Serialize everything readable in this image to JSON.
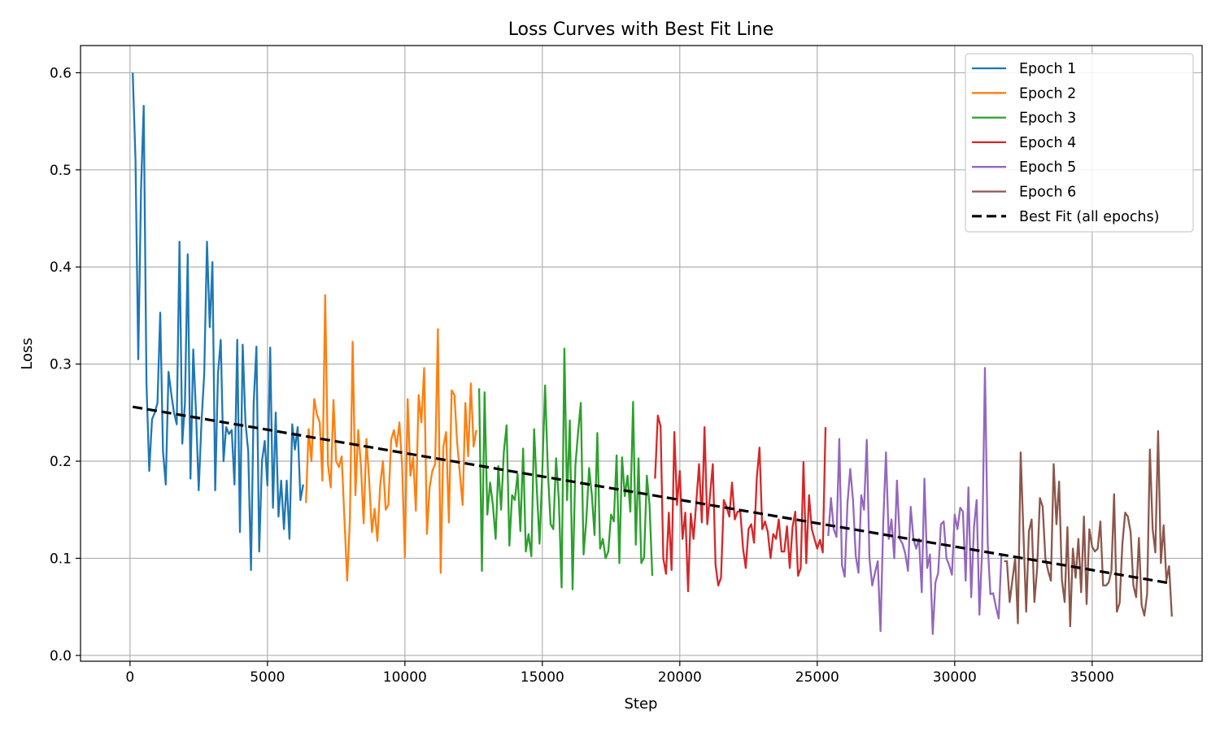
{
  "chart_data": {
    "type": "line",
    "title": "Loss Curves with Best Fit Line",
    "xlabel": "Step",
    "ylabel": "Loss",
    "xlim": [
      -1800,
      39000
    ],
    "ylim": [
      -0.006,
      0.628
    ],
    "xticks": [
      0,
      5000,
      10000,
      15000,
      20000,
      25000,
      30000,
      35000
    ],
    "yticks": [
      0.0,
      0.1,
      0.2,
      0.3,
      0.4,
      0.5,
      0.6
    ],
    "xtick_labels": [
      "0",
      "5000",
      "10000",
      "15000",
      "20000",
      "25000",
      "30000",
      "35000"
    ],
    "ytick_labels": [
      "0.0",
      "0.1",
      "0.2",
      "0.3",
      "0.4",
      "0.5",
      "0.6"
    ],
    "grid": true,
    "legend_position": "top-right",
    "series": [
      {
        "name": "Epoch 1",
        "color": "#1f77b4",
        "x": [
          100,
          200,
          300,
          400,
          500,
          600,
          700,
          800,
          900,
          1000,
          1100,
          1200,
          1300,
          1400,
          1500,
          1600,
          1700,
          1800,
          1900,
          2000,
          2100,
          2200,
          2300,
          2400,
          2500,
          2600,
          2700,
          2800,
          2900,
          3000,
          3100,
          3200,
          3300,
          3400,
          3500,
          3600,
          3700,
          3800,
          3900,
          4000,
          4100,
          4200,
          4300,
          4400,
          4500,
          4600,
          4700,
          4800,
          4900,
          5000,
          5100,
          5200,
          5300,
          5400,
          5500,
          5600,
          5700,
          5800,
          5900,
          6000,
          6100,
          6200,
          6300
        ],
        "y": [
          0.6,
          0.51,
          0.305,
          0.48,
          0.566,
          0.28,
          0.19,
          0.243,
          0.25,
          0.26,
          0.353,
          0.21,
          0.176,
          0.292,
          0.27,
          0.25,
          0.238,
          0.426,
          0.218,
          0.26,
          0.413,
          0.182,
          0.315,
          0.25,
          0.17,
          0.24,
          0.29,
          0.426,
          0.338,
          0.405,
          0.17,
          0.29,
          0.325,
          0.2,
          0.235,
          0.228,
          0.232,
          0.176,
          0.325,
          0.127,
          0.32,
          0.24,
          0.21,
          0.088,
          0.26,
          0.318,
          0.107,
          0.2,
          0.221,
          0.175,
          0.317,
          0.152,
          0.25,
          0.143,
          0.18,
          0.13,
          0.18,
          0.12,
          0.238,
          0.212,
          0.235,
          0.16,
          0.176
        ]
      },
      {
        "name": "Epoch 2",
        "color": "#ff7f0e",
        "x": [
          6400,
          6500,
          6600,
          6700,
          6800,
          6900,
          7000,
          7100,
          7200,
          7300,
          7400,
          7500,
          7600,
          7700,
          7800,
          7900,
          8000,
          8100,
          8200,
          8300,
          8400,
          8500,
          8600,
          8700,
          8800,
          8900,
          9000,
          9100,
          9200,
          9300,
          9400,
          9500,
          9600,
          9700,
          9800,
          9900,
          10000,
          10100,
          10200,
          10300,
          10400,
          10500,
          10600,
          10700,
          10800,
          10900,
          11000,
          11100,
          11200,
          11300,
          11400,
          11500,
          11600,
          11700,
          11800,
          11900,
          12000,
          12100,
          12200,
          12300,
          12400,
          12500,
          12600
        ],
        "y": [
          0.157,
          0.233,
          0.2,
          0.264,
          0.248,
          0.24,
          0.18,
          0.371,
          0.197,
          0.173,
          0.263,
          0.2,
          0.194,
          0.205,
          0.14,
          0.077,
          0.14,
          0.323,
          0.165,
          0.232,
          0.195,
          0.136,
          0.223,
          0.18,
          0.127,
          0.151,
          0.118,
          0.175,
          0.2,
          0.15,
          0.155,
          0.222,
          0.232,
          0.215,
          0.24,
          0.195,
          0.101,
          0.264,
          0.185,
          0.204,
          0.149,
          0.268,
          0.24,
          0.296,
          0.125,
          0.173,
          0.19,
          0.197,
          0.336,
          0.085,
          0.215,
          0.23,
          0.137,
          0.273,
          0.268,
          0.22,
          0.187,
          0.155,
          0.26,
          0.205,
          0.28,
          0.215,
          0.232
        ]
      },
      {
        "name": "Epoch 3",
        "color": "#2ca02c",
        "x": [
          12700,
          12800,
          12900,
          13000,
          13100,
          13200,
          13300,
          13400,
          13500,
          13600,
          13700,
          13800,
          13900,
          14000,
          14100,
          14200,
          14300,
          14400,
          14500,
          14600,
          14700,
          14800,
          14900,
          15000,
          15100,
          15200,
          15300,
          15400,
          15500,
          15600,
          15700,
          15800,
          15900,
          16000,
          16100,
          16200,
          16300,
          16400,
          16500,
          16600,
          16700,
          16800,
          16900,
          17000,
          17100,
          17200,
          17300,
          17400,
          17500,
          17600,
          17700,
          17800,
          17900,
          18000,
          18100,
          18200,
          18300,
          18400,
          18500,
          18600,
          18700,
          18800,
          18900,
          19000
        ],
        "y": [
          0.275,
          0.087,
          0.271,
          0.145,
          0.178,
          0.155,
          0.12,
          0.195,
          0.15,
          0.21,
          0.237,
          0.113,
          0.165,
          0.16,
          0.187,
          0.128,
          0.213,
          0.107,
          0.125,
          0.102,
          0.233,
          0.17,
          0.115,
          0.19,
          0.278,
          0.19,
          0.135,
          0.13,
          0.203,
          0.16,
          0.07,
          0.316,
          0.16,
          0.242,
          0.068,
          0.195,
          0.23,
          0.26,
          0.104,
          0.14,
          0.193,
          0.165,
          0.124,
          0.229,
          0.11,
          0.12,
          0.1,
          0.107,
          0.145,
          0.138,
          0.206,
          0.095,
          0.204,
          0.164,
          0.185,
          0.148,
          0.261,
          0.114,
          0.203,
          0.095,
          0.101,
          0.185,
          0.155,
          0.082
        ]
      },
      {
        "name": "Epoch 4",
        "color": "#d62728",
        "x": [
          19100,
          19200,
          19300,
          19400,
          19500,
          19600,
          19700,
          19800,
          19900,
          20000,
          20100,
          20200,
          20300,
          20400,
          20500,
          20600,
          20700,
          20800,
          20900,
          21000,
          21100,
          21200,
          21300,
          21400,
          21500,
          21600,
          21700,
          21800,
          21900,
          22000,
          22100,
          22200,
          22300,
          22400,
          22500,
          22600,
          22700,
          22800,
          22900,
          23000,
          23100,
          23200,
          23300,
          23400,
          23500,
          23600,
          23700,
          23800,
          23900,
          24000,
          24100,
          24200,
          24300,
          24400,
          24500,
          24600,
          24700,
          24800,
          24900,
          25000,
          25100,
          25200,
          25300
        ],
        "y": [
          0.182,
          0.247,
          0.236,
          0.1,
          0.084,
          0.147,
          0.088,
          0.23,
          0.155,
          0.19,
          0.12,
          0.147,
          0.066,
          0.146,
          0.12,
          0.158,
          0.197,
          0.137,
          0.235,
          0.135,
          0.165,
          0.197,
          0.093,
          0.072,
          0.08,
          0.16,
          0.153,
          0.143,
          0.178,
          0.14,
          0.148,
          0.148,
          0.11,
          0.09,
          0.13,
          0.135,
          0.116,
          0.183,
          0.214,
          0.13,
          0.138,
          0.127,
          0.1,
          0.125,
          0.12,
          0.14,
          0.107,
          0.107,
          0.133,
          0.09,
          0.132,
          0.148,
          0.082,
          0.09,
          0.199,
          0.095,
          0.165,
          0.13,
          0.12,
          0.11,
          0.119,
          0.106,
          0.235
        ]
      },
      {
        "name": "Epoch 5",
        "color": "#9467bd",
        "x": [
          25400,
          25500,
          25600,
          25700,
          25800,
          25900,
          26000,
          26100,
          26200,
          26300,
          26400,
          26500,
          26600,
          26700,
          26800,
          26900,
          27000,
          27100,
          27200,
          27300,
          27400,
          27500,
          27600,
          27700,
          27800,
          27900,
          28000,
          28100,
          28200,
          28300,
          28400,
          28500,
          28600,
          28700,
          28800,
          28900,
          29000,
          29100,
          29200,
          29300,
          29400,
          29500,
          29600,
          29700,
          29800,
          29900,
          30000,
          30100,
          30200,
          30300,
          30400,
          30500,
          30600,
          30700,
          30800,
          30900,
          31000,
          31100,
          31200,
          31300,
          31400,
          31500,
          31600,
          31700
        ],
        "y": [
          0.123,
          0.162,
          0.13,
          0.122,
          0.223,
          0.093,
          0.081,
          0.157,
          0.192,
          0.16,
          0.103,
          0.085,
          0.165,
          0.15,
          0.222,
          0.1,
          0.072,
          0.085,
          0.097,
          0.025,
          0.135,
          0.209,
          0.12,
          0.14,
          0.1,
          0.18,
          0.12,
          0.115,
          0.105,
          0.087,
          0.153,
          0.12,
          0.11,
          0.12,
          0.065,
          0.182,
          0.09,
          0.104,
          0.022,
          0.075,
          0.085,
          0.135,
          0.138,
          0.1,
          0.093,
          0.083,
          0.145,
          0.13,
          0.152,
          0.148,
          0.077,
          0.173,
          0.06,
          0.132,
          0.16,
          0.042,
          0.11,
          0.296,
          0.115,
          0.063,
          0.064,
          0.05,
          0.038,
          0.105
        ]
      },
      {
        "name": "Epoch 6",
        "color": "#8c564b",
        "x": [
          31800,
          31900,
          32000,
          32100,
          32200,
          32300,
          32400,
          32500,
          32600,
          32700,
          32800,
          32900,
          33000,
          33100,
          33200,
          33300,
          33400,
          33500,
          33600,
          33700,
          33800,
          33900,
          34000,
          34100,
          34200,
          34300,
          34400,
          34500,
          34600,
          34700,
          34800,
          34900,
          35000,
          35100,
          35200,
          35300,
          35400,
          35500,
          35600,
          35700,
          35800,
          35900,
          36000,
          36100,
          36200,
          36300,
          36400,
          36500,
          36600,
          36700,
          36800,
          36900,
          37000,
          37100,
          37200,
          37300,
          37400,
          37500,
          37600,
          37700,
          37800,
          37900
        ],
        "y": [
          0.097,
          0.097,
          0.055,
          0.078,
          0.1,
          0.033,
          0.209,
          0.126,
          0.045,
          0.128,
          0.14,
          0.055,
          0.09,
          0.162,
          0.153,
          0.1,
          0.087,
          0.077,
          0.197,
          0.135,
          0.179,
          0.078,
          0.055,
          0.132,
          0.03,
          0.11,
          0.08,
          0.12,
          0.065,
          0.143,
          0.053,
          0.13,
          0.112,
          0.107,
          0.11,
          0.138,
          0.072,
          0.072,
          0.075,
          0.087,
          0.166,
          0.045,
          0.054,
          0.115,
          0.147,
          0.143,
          0.127,
          0.072,
          0.06,
          0.121,
          0.052,
          0.041,
          0.063,
          0.212,
          0.13,
          0.106,
          0.231,
          0.095,
          0.134,
          0.077,
          0.092,
          0.04
        ]
      }
    ],
    "best_fit": {
      "name": "Best Fit (all epochs)",
      "color": "#000000",
      "style": "dashed",
      "x": [
        100,
        37900
      ],
      "y": [
        0.256,
        0.074
      ]
    }
  }
}
